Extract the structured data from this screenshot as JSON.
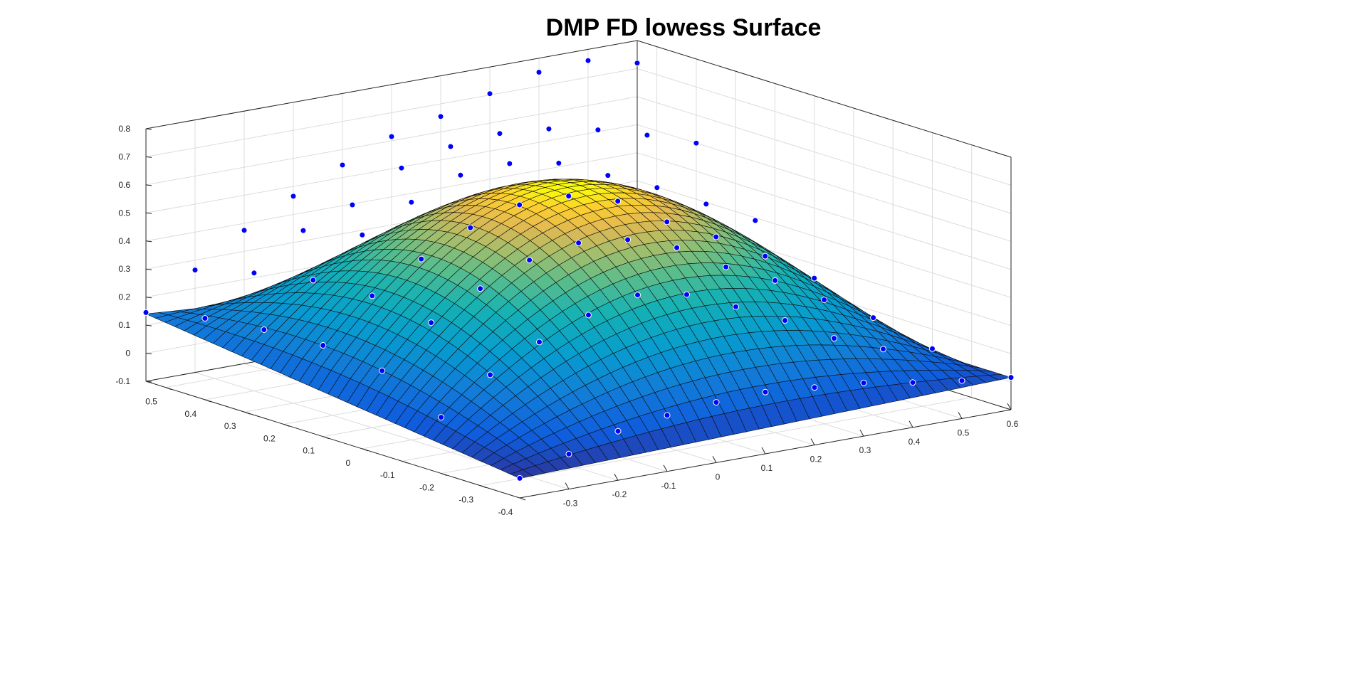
{
  "chart_data": {
    "type": "surface",
    "title": "DMP FD lowess Surface",
    "xlabel": "",
    "ylabel": "",
    "zlabel": "",
    "x_range": [
      -0.4,
      0.6
    ],
    "y_range": [
      -0.4,
      0.55
    ],
    "zlim": [
      -0.1,
      0.8
    ],
    "x_ticks": [
      -0.3,
      -0.2,
      -0.1,
      0,
      0.1,
      0.2,
      0.3,
      0.4,
      0.5,
      0.6
    ],
    "y_ticks": [
      -0.4,
      -0.3,
      -0.2,
      -0.1,
      0,
      0.1,
      0.2,
      0.3,
      0.4,
      0.5
    ],
    "z_ticks": [
      -0.1,
      0,
      0.1,
      0.2,
      0.3,
      0.4,
      0.5,
      0.6,
      0.7,
      0.8
    ],
    "x_tick_labels": [
      "-0.3",
      "-0.2",
      "-0.1",
      "0",
      "0.1",
      "0.2",
      "0.3",
      "0.4",
      "0.5",
      "0.6"
    ],
    "y_tick_labels": [
      "-0.4",
      "-0.3",
      "-0.2",
      "-0.1",
      "0",
      "0.1",
      "0.2",
      "0.3",
      "0.4",
      "0.5"
    ],
    "z_tick_labels": [
      "-0.1",
      "0",
      "0.1",
      "0.2",
      "0.3",
      "0.4",
      "0.5",
      "0.6",
      "0.7",
      "0.8"
    ],
    "grid": true,
    "colormap": "parula",
    "point_color": "#0000ff",
    "grid_color": "#dcdcdc",
    "axis_color": "#262626",
    "surface": {
      "x_count": 40,
      "y_count": 40,
      "peak_x": 0.1,
      "peak_y": 0.08,
      "peak_z": 0.64,
      "corner_z": {
        "xmin_ymin": -0.03,
        "xmax_ymin": 0.015,
        "xmin_ymax": 0.14,
        "xmax_ymax": 0.015
      }
    },
    "points": [
      {
        "x": -0.4,
        "y": 0.55,
        "z": 0.145
      },
      {
        "x": -0.3,
        "y": 0.55,
        "z": 0.265
      },
      {
        "x": -0.2,
        "y": 0.55,
        "z": 0.375
      },
      {
        "x": -0.1,
        "y": 0.55,
        "z": 0.465
      },
      {
        "x": 0.0,
        "y": 0.55,
        "z": 0.545
      },
      {
        "x": 0.1,
        "y": 0.55,
        "z": 0.615
      },
      {
        "x": 0.2,
        "y": 0.55,
        "z": 0.655
      },
      {
        "x": 0.3,
        "y": 0.55,
        "z": 0.705
      },
      {
        "x": 0.4,
        "y": 0.55,
        "z": 0.75
      },
      {
        "x": 0.5,
        "y": 0.55,
        "z": 0.76
      },
      {
        "x": 0.6,
        "y": 0.55,
        "z": 0.72
      },
      {
        "x": -0.4,
        "y": 0.4,
        "z": 0.19
      },
      {
        "x": -0.3,
        "y": 0.4,
        "z": 0.32
      },
      {
        "x": -0.2,
        "y": 0.4,
        "z": 0.44
      },
      {
        "x": -0.1,
        "y": 0.4,
        "z": 0.5
      },
      {
        "x": 0.0,
        "y": 0.4,
        "z": 0.6
      },
      {
        "x": 0.1,
        "y": 0.4,
        "z": 0.645
      },
      {
        "x": 0.2,
        "y": 0.4,
        "z": 0.66
      },
      {
        "x": 0.3,
        "y": 0.4,
        "z": 0.645
      },
      {
        "x": 0.4,
        "y": 0.4,
        "z": 0.61
      },
      {
        "x": 0.5,
        "y": 0.4,
        "z": 0.56
      },
      {
        "x": 0.6,
        "y": 0.4,
        "z": 0.5
      },
      {
        "x": -0.4,
        "y": 0.25,
        "z": 0.215
      },
      {
        "x": -0.3,
        "y": 0.25,
        "z": 0.36
      },
      {
        "x": -0.2,
        "y": 0.25,
        "z": 0.49
      },
      {
        "x": -0.1,
        "y": 0.25,
        "z": 0.575
      },
      {
        "x": 0.0,
        "y": 0.25,
        "z": 0.64
      },
      {
        "x": 0.1,
        "y": 0.25,
        "z": 0.65
      },
      {
        "x": 0.2,
        "y": 0.25,
        "z": 0.62
      },
      {
        "x": 0.3,
        "y": 0.25,
        "z": 0.545
      },
      {
        "x": 0.4,
        "y": 0.25,
        "z": 0.47
      },
      {
        "x": 0.5,
        "y": 0.25,
        "z": 0.38
      },
      {
        "x": 0.6,
        "y": 0.25,
        "z": 0.29
      },
      {
        "x": -0.4,
        "y": 0.1,
        "z": 0.225
      },
      {
        "x": -0.3,
        "y": 0.1,
        "z": 0.37
      },
      {
        "x": -0.2,
        "y": 0.1,
        "z": 0.47
      },
      {
        "x": -0.1,
        "y": 0.1,
        "z": 0.55
      },
      {
        "x": 0.0,
        "y": 0.1,
        "z": 0.6
      },
      {
        "x": 0.1,
        "y": 0.1,
        "z": 0.6
      },
      {
        "x": 0.2,
        "y": 0.1,
        "z": 0.55
      },
      {
        "x": 0.3,
        "y": 0.1,
        "z": 0.445
      },
      {
        "x": 0.4,
        "y": 0.1,
        "z": 0.36
      },
      {
        "x": 0.5,
        "y": 0.1,
        "z": 0.26
      },
      {
        "x": 0.6,
        "y": 0.1,
        "z": 0.15
      },
      {
        "x": -0.4,
        "y": -0.05,
        "z": 0.2
      },
      {
        "x": -0.3,
        "y": -0.05,
        "z": 0.34
      },
      {
        "x": -0.2,
        "y": -0.05,
        "z": 0.43
      },
      {
        "x": -0.1,
        "y": -0.05,
        "z": 0.5
      },
      {
        "x": 0.0,
        "y": -0.05,
        "z": 0.53
      },
      {
        "x": 0.1,
        "y": -0.05,
        "z": 0.51
      },
      {
        "x": 0.2,
        "y": -0.05,
        "z": 0.45
      },
      {
        "x": 0.3,
        "y": -0.05,
        "z": 0.35
      },
      {
        "x": 0.4,
        "y": -0.05,
        "z": 0.27
      },
      {
        "x": 0.5,
        "y": -0.05,
        "z": 0.17
      },
      {
        "x": 0.6,
        "y": -0.05,
        "z": 0.075
      },
      {
        "x": -0.4,
        "y": -0.2,
        "z": 0.1
      },
      {
        "x": -0.3,
        "y": -0.2,
        "z": 0.22
      },
      {
        "x": -0.2,
        "y": -0.2,
        "z": 0.305
      },
      {
        "x": -0.1,
        "y": -0.2,
        "z": 0.37
      },
      {
        "x": 0.0,
        "y": -0.2,
        "z": 0.41
      },
      {
        "x": 0.1,
        "y": -0.2,
        "z": 0.38
      },
      {
        "x": 0.2,
        "y": -0.2,
        "z": 0.305
      },
      {
        "x": 0.3,
        "y": -0.2,
        "z": 0.225
      },
      {
        "x": 0.4,
        "y": -0.2,
        "z": 0.13
      },
      {
        "x": 0.5,
        "y": -0.2,
        "z": 0.06
      },
      {
        "x": 0.6,
        "y": -0.2,
        "z": 0.03
      },
      {
        "x": -0.4,
        "y": -0.4,
        "z": -0.03
      },
      {
        "x": -0.3,
        "y": -0.4,
        "z": 0.025
      },
      {
        "x": -0.2,
        "y": -0.4,
        "z": 0.075
      },
      {
        "x": -0.1,
        "y": -0.4,
        "z": 0.1
      },
      {
        "x": 0.0,
        "y": -0.4,
        "z": 0.115
      },
      {
        "x": 0.1,
        "y": -0.4,
        "z": 0.12
      },
      {
        "x": 0.2,
        "y": -0.4,
        "z": 0.105
      },
      {
        "x": 0.3,
        "y": -0.4,
        "z": 0.09
      },
      {
        "x": 0.4,
        "y": -0.4,
        "z": 0.06
      },
      {
        "x": 0.5,
        "y": -0.4,
        "z": 0.035
      },
      {
        "x": 0.6,
        "y": -0.4,
        "z": 0.015
      }
    ]
  }
}
